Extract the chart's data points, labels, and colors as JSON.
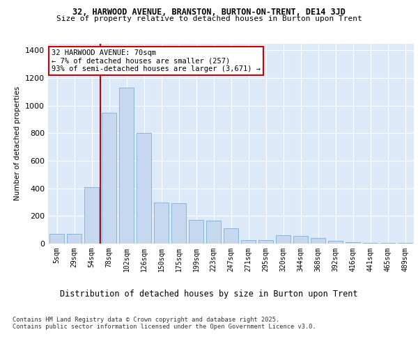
{
  "title1": "32, HARWOOD AVENUE, BRANSTON, BURTON-ON-TRENT, DE14 3JD",
  "title2": "Size of property relative to detached houses in Burton upon Trent",
  "xlabel": "Distribution of detached houses by size in Burton upon Trent",
  "ylabel": "Number of detached properties",
  "categories": [
    "5sqm",
    "29sqm",
    "54sqm",
    "78sqm",
    "102sqm",
    "126sqm",
    "150sqm",
    "175sqm",
    "199sqm",
    "223sqm",
    "247sqm",
    "271sqm",
    "295sqm",
    "320sqm",
    "344sqm",
    "368sqm",
    "392sqm",
    "416sqm",
    "441sqm",
    "465sqm",
    "489sqm"
  ],
  "values": [
    70,
    70,
    410,
    950,
    1130,
    800,
    300,
    295,
    170,
    165,
    110,
    25,
    25,
    60,
    55,
    40,
    20,
    10,
    7,
    5,
    5
  ],
  "bar_color": "#c5d8f0",
  "bar_edge_color": "#7bafd4",
  "vline_index": 2,
  "vline_color": "#cc0000",
  "annotation_text": "32 HARWOOD AVENUE: 70sqm\n← 7% of detached houses are smaller (257)\n93% of semi-detached houses are larger (3,671) →",
  "annotation_box_color": "#ffffff",
  "annotation_box_edge": "#cc0000",
  "ylim": [
    0,
    1450
  ],
  "yticks": [
    0,
    200,
    400,
    600,
    800,
    1000,
    1200,
    1400
  ],
  "background_color": "#dce9f8",
  "grid_color": "#ffffff",
  "footer1": "Contains HM Land Registry data © Crown copyright and database right 2025.",
  "footer2": "Contains public sector information licensed under the Open Government Licence v3.0."
}
